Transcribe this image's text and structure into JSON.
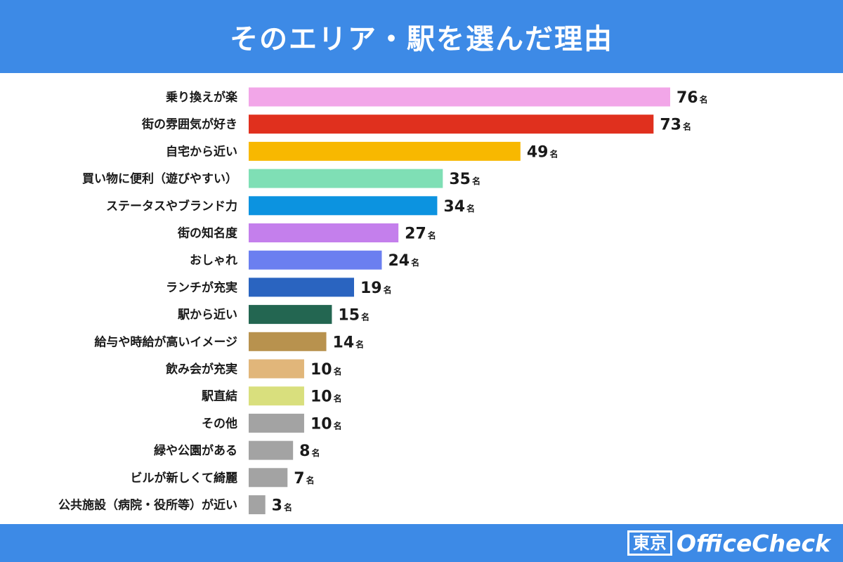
{
  "header": {
    "title": "そのエリア・駅を選んだ理由"
  },
  "footer": {
    "logo_box": "東京",
    "logo_text": "OfficeCheck"
  },
  "chart_data": {
    "type": "bar",
    "orientation": "horizontal",
    "title": "そのエリア・駅を選んだ理由",
    "unit": "名",
    "categories": [
      "乗り換えが楽",
      "街の雰囲気が好き",
      "自宅から近い",
      "買い物に便利（遊びやすい）",
      "ステータスやブランド力",
      "街の知名度",
      "おしゃれ",
      "ランチが充実",
      "駅から近い",
      "給与や時給が高いイメージ",
      "飲み会が充実",
      "駅直結",
      "その他",
      "緑や公園がある",
      "ビルが新しくて綺麗",
      "公共施設（病院・役所等）が近い"
    ],
    "values": [
      76,
      73,
      49,
      35,
      34,
      27,
      24,
      19,
      15,
      14,
      10,
      10,
      10,
      8,
      7,
      3
    ],
    "colors": [
      "#f2a6e8",
      "#e0301e",
      "#f8b800",
      "#7fdfb5",
      "#0c93e0",
      "#c47fec",
      "#6b7ff0",
      "#2a64c0",
      "#236651",
      "#b8924e",
      "#e1b67a",
      "#d9df7d",
      "#a3a3a3",
      "#a3a3a3",
      "#a3a3a3",
      "#a3a3a3"
    ],
    "xlim": [
      0,
      76
    ],
    "grid": false,
    "legend": "none"
  }
}
